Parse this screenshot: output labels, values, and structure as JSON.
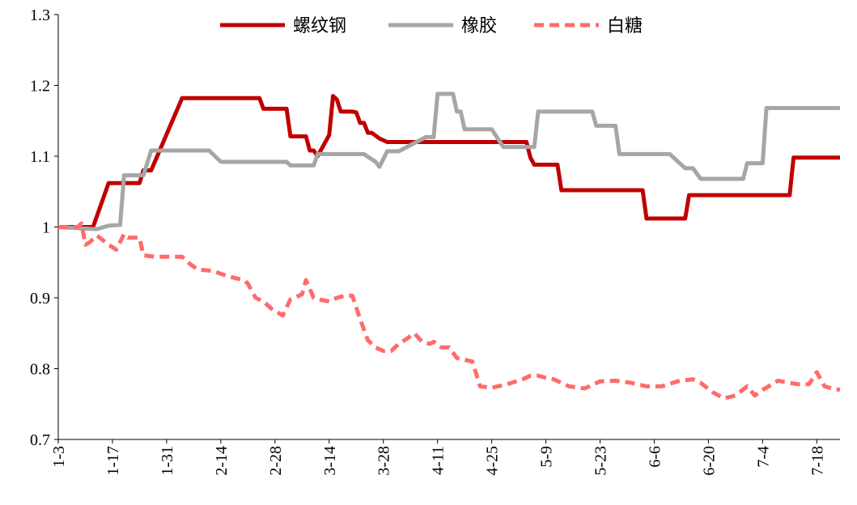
{
  "chart_data": {
    "type": "line",
    "title": "",
    "xlabel": "",
    "ylabel": "",
    "ylim": [
      0.7,
      1.3
    ],
    "yticks": [
      "0.7",
      "0.8",
      "0.9",
      "1",
      "1.1",
      "1.2",
      "1.3"
    ],
    "xticks": [
      "1-3",
      "1-17",
      "1-31",
      "2-14",
      "2-28",
      "3-14",
      "3-28",
      "4-11",
      "4-25",
      "5-9",
      "5-23",
      "6-6",
      "6-20",
      "7-4",
      "7-18"
    ],
    "x_range_days": [
      0,
      202
    ],
    "legend_position": "top",
    "grid": false,
    "series": [
      {
        "name": "螺纹钢",
        "color": "#c00000",
        "dash": "solid",
        "points": [
          [
            0,
            1.0
          ],
          [
            9,
            1.0
          ],
          [
            13,
            1.062
          ],
          [
            21,
            1.062
          ],
          [
            22,
            1.08
          ],
          [
            24,
            1.08
          ],
          [
            32,
            1.182
          ],
          [
            52,
            1.182
          ],
          [
            53,
            1.167
          ],
          [
            59,
            1.167
          ],
          [
            60,
            1.128
          ],
          [
            64,
            1.128
          ],
          [
            65,
            1.108
          ],
          [
            66,
            1.108
          ],
          [
            67,
            1.1
          ],
          [
            70,
            1.13
          ],
          [
            71,
            1.185
          ],
          [
            72,
            1.18
          ],
          [
            73,
            1.163
          ],
          [
            76,
            1.163
          ],
          [
            77,
            1.162
          ],
          [
            78,
            1.147
          ],
          [
            79,
            1.147
          ],
          [
            80,
            1.133
          ],
          [
            81,
            1.133
          ],
          [
            83,
            1.125
          ],
          [
            85,
            1.12
          ],
          [
            106,
            1.12
          ],
          [
            121,
            1.12
          ],
          [
            122,
            1.098
          ],
          [
            123,
            1.088
          ],
          [
            129,
            1.088
          ],
          [
            130,
            1.052
          ],
          [
            151,
            1.052
          ],
          [
            152,
            1.012
          ],
          [
            162,
            1.012
          ],
          [
            163,
            1.045
          ],
          [
            189,
            1.045
          ],
          [
            190,
            1.098
          ],
          [
            202,
            1.098
          ]
        ]
      },
      {
        "name": "橡胶",
        "color": "#a6a6a6",
        "dash": "solid",
        "points": [
          [
            0,
            1.0
          ],
          [
            6,
            0.998
          ],
          [
            10,
            0.997
          ],
          [
            13,
            1.002
          ],
          [
            16,
            1.003
          ],
          [
            17,
            1.073
          ],
          [
            22,
            1.073
          ],
          [
            24,
            1.108
          ],
          [
            39,
            1.108
          ],
          [
            42,
            1.092
          ],
          [
            59,
            1.092
          ],
          [
            60,
            1.087
          ],
          [
            66,
            1.087
          ],
          [
            67,
            1.103
          ],
          [
            79,
            1.103
          ],
          [
            82,
            1.092
          ],
          [
            83,
            1.085
          ],
          [
            85,
            1.107
          ],
          [
            88,
            1.107
          ],
          [
            95,
            1.127
          ],
          [
            97,
            1.127
          ],
          [
            98,
            1.188
          ],
          [
            102,
            1.188
          ],
          [
            103,
            1.163
          ],
          [
            104,
            1.163
          ],
          [
            105,
            1.138
          ],
          [
            112,
            1.138
          ],
          [
            115,
            1.113
          ],
          [
            123,
            1.113
          ],
          [
            124,
            1.163
          ],
          [
            138,
            1.163
          ],
          [
            139,
            1.143
          ],
          [
            144,
            1.143
          ],
          [
            145,
            1.103
          ],
          [
            158,
            1.103
          ],
          [
            162,
            1.083
          ],
          [
            164,
            1.083
          ],
          [
            166,
            1.068
          ],
          [
            177,
            1.068
          ],
          [
            178,
            1.09
          ],
          [
            182,
            1.09
          ],
          [
            183,
            1.168
          ],
          [
            202,
            1.168
          ]
        ]
      },
      {
        "name": "白糖",
        "color": "#ff6b6b",
        "dash": "dashed",
        "points": [
          [
            0,
            1.0
          ],
          [
            5,
            1.0
          ],
          [
            6,
            1.005
          ],
          [
            7,
            0.975
          ],
          [
            8,
            0.978
          ],
          [
            10,
            0.988
          ],
          [
            13,
            0.975
          ],
          [
            15,
            0.968
          ],
          [
            17,
            0.99
          ],
          [
            18,
            0.985
          ],
          [
            21,
            0.985
          ],
          [
            22,
            0.96
          ],
          [
            25,
            0.958
          ],
          [
            32,
            0.958
          ],
          [
            34,
            0.948
          ],
          [
            36,
            0.94
          ],
          [
            40,
            0.938
          ],
          [
            44,
            0.93
          ],
          [
            48,
            0.925
          ],
          [
            49,
            0.92
          ],
          [
            51,
            0.9
          ],
          [
            53,
            0.895
          ],
          [
            55,
            0.885
          ],
          [
            58,
            0.875
          ],
          [
            60,
            0.898
          ],
          [
            61,
            0.9
          ],
          [
            63,
            0.905
          ],
          [
            64,
            0.925
          ],
          [
            66,
            0.9
          ],
          [
            67,
            0.898
          ],
          [
            70,
            0.895
          ],
          [
            72,
            0.9
          ],
          [
            74,
            0.903
          ],
          [
            76,
            0.903
          ],
          [
            78,
            0.87
          ],
          [
            80,
            0.84
          ],
          [
            82,
            0.83
          ],
          [
            84,
            0.825
          ],
          [
            86,
            0.825
          ],
          [
            88,
            0.835
          ],
          [
            90,
            0.842
          ],
          [
            92,
            0.85
          ],
          [
            94,
            0.838
          ],
          [
            96,
            0.835
          ],
          [
            97,
            0.838
          ],
          [
            99,
            0.83
          ],
          [
            101,
            0.83
          ],
          [
            103,
            0.815
          ],
          [
            107,
            0.81
          ],
          [
            109,
            0.775
          ],
          [
            112,
            0.773
          ],
          [
            116,
            0.778
          ],
          [
            120,
            0.785
          ],
          [
            122,
            0.79
          ],
          [
            124,
            0.79
          ],
          [
            126,
            0.787
          ],
          [
            128,
            0.785
          ],
          [
            130,
            0.78
          ],
          [
            132,
            0.775
          ],
          [
            136,
            0.772
          ],
          [
            140,
            0.782
          ],
          [
            144,
            0.783
          ],
          [
            148,
            0.78
          ],
          [
            152,
            0.775
          ],
          [
            156,
            0.775
          ],
          [
            160,
            0.782
          ],
          [
            164,
            0.785
          ],
          [
            166,
            0.78
          ],
          [
            169,
            0.767
          ],
          [
            172,
            0.758
          ],
          [
            175,
            0.762
          ],
          [
            178,
            0.775
          ],
          [
            180,
            0.762
          ],
          [
            182,
            0.77
          ],
          [
            186,
            0.783
          ],
          [
            189,
            0.78
          ],
          [
            191,
            0.778
          ],
          [
            194,
            0.778
          ],
          [
            196,
            0.795
          ],
          [
            198,
            0.775
          ],
          [
            200,
            0.772
          ],
          [
            202,
            0.77
          ]
        ]
      }
    ]
  }
}
